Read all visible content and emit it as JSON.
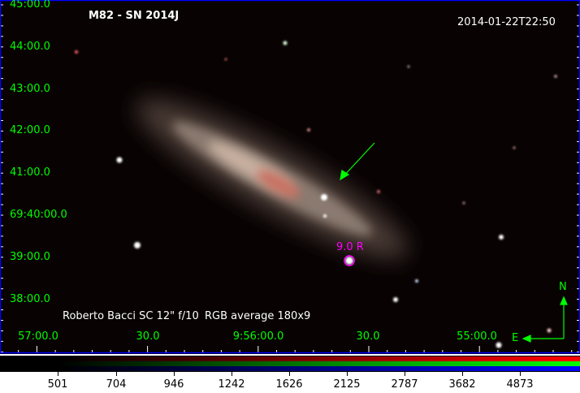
{
  "image": {
    "title": "M82 - SN 2014J",
    "timestamp": "2014-01-22T22:50",
    "credit": "Roberto Bacci SC 12\" f/10",
    "processing": "RGB average 180x9",
    "star_label": "9.0 R",
    "compass": {
      "north": "N",
      "east": "E"
    },
    "colors": {
      "grid": "#00ff00",
      "marker": "#ff00ff",
      "frame_border": "#0000ff"
    }
  },
  "axes": {
    "dec_labels": [
      "45:00.0",
      "44:00.0",
      "43:00.0",
      "42:00.0",
      "41:00.0",
      "69:40:00.0",
      "39:00.0",
      "38:00.0"
    ],
    "ra_labels": [
      "57:00.0",
      "30.0",
      "9:56:00.0",
      "30.0",
      "55:00.0"
    ]
  },
  "colorbar": {
    "type": "rgb",
    "ticks": [
      "501",
      "704",
      "946",
      "1242",
      "1626",
      "2125",
      "2787",
      "3682",
      "4873"
    ]
  }
}
